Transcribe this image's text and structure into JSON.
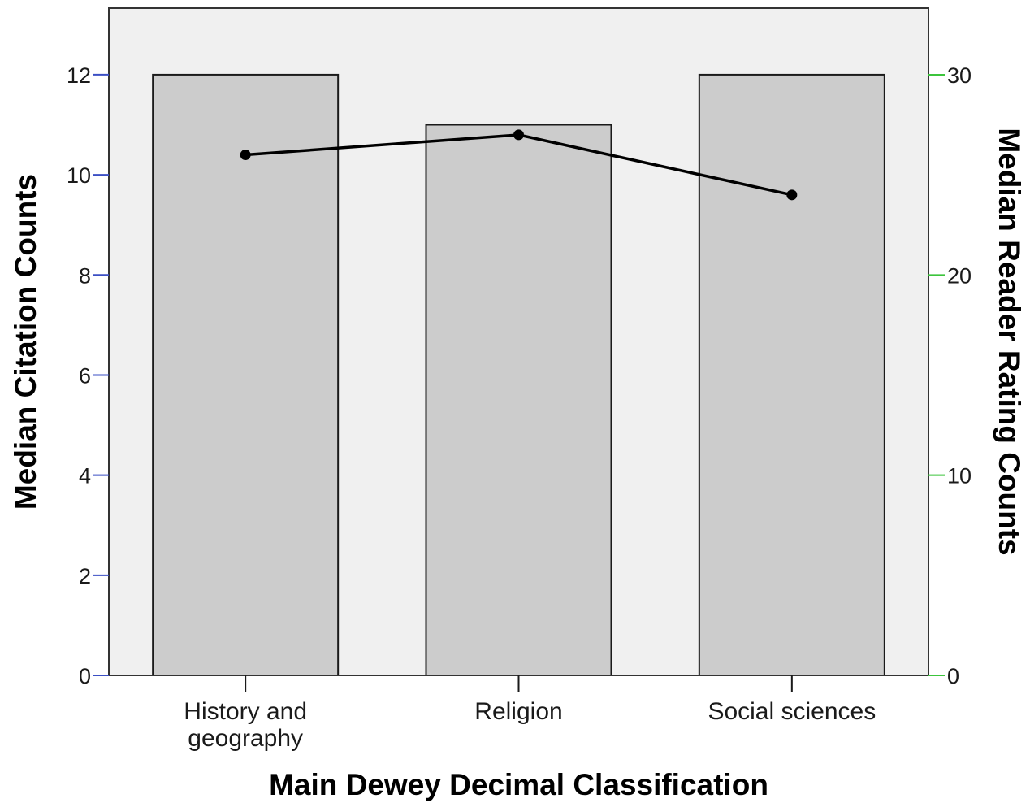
{
  "chart_data": {
    "type": "bar",
    "categories": [
      "History and geography",
      "Religion",
      "Social sciences"
    ],
    "category_lines": [
      [
        "History and",
        "geography"
      ],
      [
        "Religion"
      ],
      [
        "Social sciences"
      ]
    ],
    "series": [
      {
        "axis": "left",
        "type": "bar",
        "values": [
          12,
          11,
          12
        ]
      },
      {
        "axis": "right",
        "type": "line",
        "values": [
          26,
          27,
          24
        ]
      }
    ],
    "xlabel": "Main Dewey Decimal Classification",
    "ylabel": "Median Citation Counts",
    "y2label": "Median Reader Rating Counts",
    "ylim": [
      0,
      13.33
    ],
    "y2lim": [
      0,
      33.33
    ],
    "yticks": [
      0,
      2,
      4,
      6,
      8,
      10,
      12
    ],
    "y2ticks": [
      0,
      10,
      20,
      30
    ],
    "grid": false,
    "colors": {
      "plot_bg": "#f0f0f0",
      "bar_fill": "#cccccc",
      "bar_stroke": "#1a1a1a",
      "line": "#000000",
      "left_tick": "#3b4fc4",
      "right_tick": "#3cc43c",
      "frame": "#333333"
    }
  }
}
